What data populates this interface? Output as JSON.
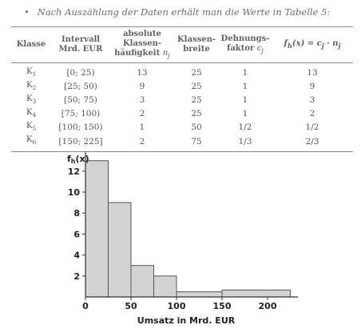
{
  "intro": {
    "bullet": "•",
    "text": "Nach Auszählung der Daten erhält man die Werte in Tabelle 5:"
  },
  "table": {
    "headers": {
      "klasse": "Klasse",
      "intervall_1": "Intervall",
      "intervall_2": "Mrd. EUR",
      "abs_1": "absolute",
      "abs_2": "Klassen-",
      "abs_3": "häufigkeit",
      "abs_sym": "n",
      "abs_sub": "j",
      "breite_1": "Klassen-",
      "breite_2": "breite",
      "dehn_1": "Dehnungs-",
      "dehn_2": "faktor",
      "dehn_sym": "c",
      "dehn_sub": "j",
      "f_col": "f",
      "f_sub": "h",
      "f_rest": "(x) = c",
      "f_sub_j": "j",
      "f_dot": " · n",
      "f_sub_j2": "j"
    },
    "rows": [
      {
        "klasse": "K",
        "sub": "1",
        "intervall": "[0; 25)",
        "nj": "13",
        "breite": "25",
        "cj": "1",
        "fh": "13"
      },
      {
        "klasse": "K",
        "sub": "2",
        "intervall": "[25; 50)",
        "nj": "9",
        "breite": "25",
        "cj": "1",
        "fh": "9"
      },
      {
        "klasse": "K",
        "sub": "3",
        "intervall": "[50; 75)",
        "nj": "3",
        "breite": "25",
        "cj": "1",
        "fh": "3"
      },
      {
        "klasse": "K",
        "sub": "4",
        "intervall": "[75; 100)",
        "nj": "2",
        "breite": "25",
        "cj": "1",
        "fh": "2"
      },
      {
        "klasse": "K",
        "sub": "5",
        "intervall": "[100; 150)",
        "nj": "1",
        "breite": "50",
        "cj": "1/2",
        "fh": "1/2"
      },
      {
        "klasse": "K",
        "sub": "6",
        "intervall": "[150; 225]",
        "nj": "2",
        "breite": "75",
        "cj": "1/3",
        "fh": "2/3"
      }
    ]
  },
  "chart_data": {
    "type": "bar",
    "subtype": "histogram",
    "bins": [
      {
        "from": 0,
        "to": 25,
        "value": 13
      },
      {
        "from": 25,
        "to": 50,
        "value": 9
      },
      {
        "from": 50,
        "to": 75,
        "value": 3
      },
      {
        "from": 75,
        "to": 100,
        "value": 2
      },
      {
        "from": 100,
        "to": 150,
        "value": 0.5
      },
      {
        "from": 150,
        "to": 225,
        "value": 0.6667
      }
    ],
    "ylabel_main": "f",
    "ylabel_sub": "h",
    "ylabel_rest": "(x)",
    "xlabel": "Umsatz in Mrd. EUR",
    "xlim": [
      0,
      230
    ],
    "ylim": [
      0,
      14
    ],
    "xticks": [
      0,
      50,
      100,
      150,
      200
    ],
    "xtick_labels": [
      "0",
      "50",
      "100",
      "150",
      "200"
    ],
    "yticks": [
      2,
      4,
      6,
      8,
      10,
      12
    ],
    "ytick_labels": [
      "2",
      "4",
      "6",
      "8",
      "10",
      "12"
    ],
    "grid": false,
    "bar_fill": "#d3d3d3",
    "bar_stroke": "#555555"
  }
}
